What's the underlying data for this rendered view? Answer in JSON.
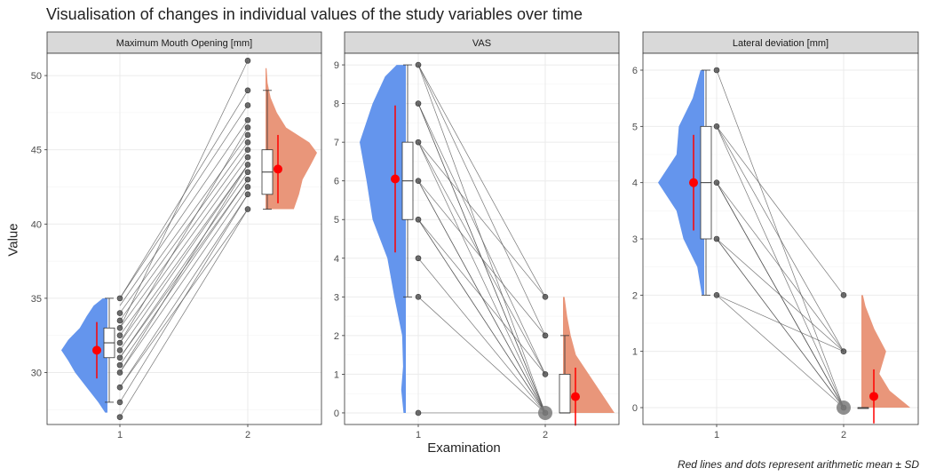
{
  "title": "Visualisation of changes in individual values of the study variables over time",
  "xlabel": "Examination",
  "ylabel": "Value",
  "caption": "Red lines and dots represent arithmetic mean ± SD",
  "colors": {
    "exam1_fill": "#6495ED",
    "exam2_fill": "#E9967A",
    "mean_color": "#FF0000",
    "point_color": "#7a7a7a",
    "line_color": "#555555",
    "strip_bg": "#d9d9d9",
    "grid": "#ebebeb"
  },
  "chart_data": [
    {
      "type": "raincloud",
      "panel": "Maximum Mouth Opening [mm]",
      "x_categories": [
        "1",
        "2"
      ],
      "ylim": [
        26.5,
        51.5
      ],
      "yticks": [
        30,
        35,
        40,
        45,
        50
      ],
      "exam1": {
        "box": {
          "min": 28,
          "q1": 31,
          "median": 32,
          "q3": 33,
          "max": 35
        },
        "mean": 31.5,
        "sd": 1.9,
        "points": [
          27,
          28,
          29,
          30,
          30.5,
          31,
          31.5,
          32,
          32.5,
          33,
          33.5,
          34,
          35
        ]
      },
      "exam2": {
        "box": {
          "min": 41,
          "q1": 42,
          "median": 43.5,
          "q3": 45,
          "max": 49
        },
        "mean": 43.7,
        "sd": 2.3,
        "points": [
          41,
          42,
          42.5,
          43,
          43.5,
          44,
          44.5,
          45,
          45.5,
          46,
          46.5,
          47,
          48,
          49,
          51
        ]
      },
      "pairs": [
        [
          27,
          41
        ],
        [
          28,
          42
        ],
        [
          29,
          41
        ],
        [
          30,
          42.5
        ],
        [
          30.5,
          43
        ],
        [
          31,
          43.5
        ],
        [
          31.5,
          44
        ],
        [
          32,
          44
        ],
        [
          32.5,
          44.5
        ],
        [
          33,
          45
        ],
        [
          33.5,
          45.5
        ],
        [
          34,
          46
        ],
        [
          34.5,
          47
        ],
        [
          35,
          48
        ],
        [
          35,
          49
        ],
        [
          33,
          51
        ],
        [
          31,
          43
        ],
        [
          30,
          44
        ],
        [
          32,
          46.5
        ],
        [
          29,
          42
        ]
      ],
      "density1": [
        [
          27.3,
          0.05
        ],
        [
          28,
          0.2
        ],
        [
          29,
          0.45
        ],
        [
          30,
          0.7
        ],
        [
          30.8,
          0.85
        ],
        [
          31.5,
          1.0
        ],
        [
          32.2,
          0.85
        ],
        [
          33,
          0.6
        ],
        [
          33.8,
          0.45
        ],
        [
          34.5,
          0.3
        ],
        [
          35,
          0.1
        ]
      ],
      "density2": [
        [
          41,
          0.55
        ],
        [
          42,
          0.65
        ],
        [
          43,
          0.72
        ],
        [
          44,
          0.88
        ],
        [
          44.8,
          1.0
        ],
        [
          45.5,
          0.85
        ],
        [
          46.5,
          0.4
        ],
        [
          47.5,
          0.22
        ],
        [
          48.5,
          0.1
        ],
        [
          49.5,
          0.04
        ],
        [
          50.5,
          0.02
        ]
      ]
    },
    {
      "type": "raincloud",
      "panel": "VAS",
      "x_categories": [
        "1",
        "2"
      ],
      "ylim": [
        -0.3,
        9.3
      ],
      "yticks": [
        0,
        1,
        2,
        3,
        4,
        5,
        6,
        7,
        8,
        9
      ],
      "exam1": {
        "box": {
          "min": 3,
          "q1": 5,
          "median": 6,
          "q3": 7,
          "max": 9
        },
        "mean": 6.05,
        "sd": 1.9,
        "points": [
          0,
          3,
          4,
          5,
          6,
          7,
          8,
          9
        ]
      },
      "exam2": {
        "box": {
          "min": 0,
          "q1": 0,
          "median": 0,
          "q3": 1,
          "max": 2
        },
        "mean": 0.42,
        "sd": 0.75,
        "points": [
          0,
          1,
          2,
          3
        ]
      },
      "pairs": [
        [
          0,
          0
        ],
        [
          3,
          0
        ],
        [
          4,
          0
        ],
        [
          5,
          0
        ],
        [
          5,
          1
        ],
        [
          6,
          0
        ],
        [
          6,
          2
        ],
        [
          7,
          0
        ],
        [
          7,
          1
        ],
        [
          7,
          3
        ],
        [
          8,
          0
        ],
        [
          8,
          1
        ],
        [
          9,
          2
        ],
        [
          9,
          3
        ],
        [
          9,
          0
        ],
        [
          6,
          0
        ],
        [
          5,
          0
        ],
        [
          8,
          0
        ]
      ],
      "density1": [
        [
          0,
          0.05
        ],
        [
          0.6,
          0.1
        ],
        [
          1.2,
          0.06
        ],
        [
          2,
          0.08
        ],
        [
          3,
          0.25
        ],
        [
          4,
          0.4
        ],
        [
          5,
          0.72
        ],
        [
          6,
          0.85
        ],
        [
          7,
          1.0
        ],
        [
          8,
          0.72
        ],
        [
          8.7,
          0.45
        ],
        [
          9,
          0.2
        ]
      ],
      "density2": [
        [
          0,
          1.0
        ],
        [
          0.5,
          0.75
        ],
        [
          1,
          0.5
        ],
        [
          1.5,
          0.25
        ],
        [
          2,
          0.15
        ],
        [
          2.5,
          0.08
        ],
        [
          3,
          0.03
        ]
      ]
    },
    {
      "type": "raincloud",
      "panel": "Lateral deviation [mm]",
      "x_categories": [
        "1",
        "2"
      ],
      "ylim": [
        -0.3,
        6.3
      ],
      "yticks": [
        0,
        1,
        2,
        3,
        4,
        5,
        6
      ],
      "exam1": {
        "box": {
          "min": 2,
          "q1": 3,
          "median": 4,
          "q3": 5,
          "max": 6
        },
        "mean": 4.0,
        "sd": 0.85,
        "points": [
          2,
          3,
          4,
          5,
          6
        ]
      },
      "exam2": {
        "box": {
          "min": 0,
          "q1": 0,
          "median": 0,
          "q3": 0,
          "max": 0
        },
        "mean": 0.2,
        "sd": 0.48,
        "points": [
          0,
          1,
          2
        ]
      },
      "pairs": [
        [
          2,
          0
        ],
        [
          3,
          0
        ],
        [
          3,
          1
        ],
        [
          4,
          0
        ],
        [
          4,
          0
        ],
        [
          4,
          1
        ],
        [
          5,
          0
        ],
        [
          5,
          2
        ],
        [
          5,
          1
        ],
        [
          6,
          0
        ],
        [
          4,
          0
        ],
        [
          3,
          0
        ],
        [
          2,
          1
        ]
      ],
      "density1": [
        [
          2,
          0.05
        ],
        [
          2.5,
          0.15
        ],
        [
          3,
          0.45
        ],
        [
          3.5,
          0.6
        ],
        [
          4,
          1.0
        ],
        [
          4.5,
          0.6
        ],
        [
          5,
          0.55
        ],
        [
          5.5,
          0.25
        ],
        [
          6,
          0.08
        ]
      ],
      "density2": [
        [
          0,
          0.95
        ],
        [
          0.3,
          0.55
        ],
        [
          0.6,
          0.35
        ],
        [
          1,
          0.48
        ],
        [
          1.4,
          0.25
        ],
        [
          1.8,
          0.08
        ],
        [
          2,
          0.03
        ]
      ]
    }
  ]
}
